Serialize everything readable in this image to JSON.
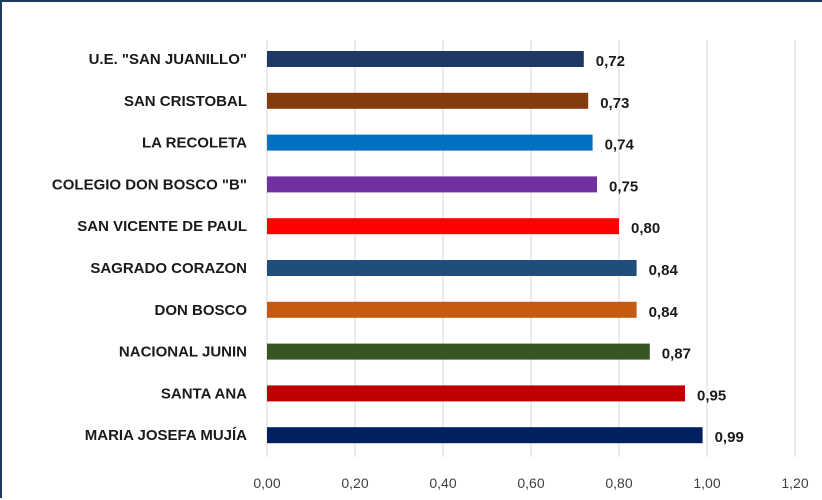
{
  "chart_data": {
    "type": "bar",
    "orientation": "horizontal",
    "categories": [
      "U.E. \"SAN JUANILLO\"",
      "SAN CRISTOBAL",
      "LA RECOLETA",
      "COLEGIO DON BOSCO \"B\"",
      "SAN VICENTE DE PAUL",
      "SAGRADO CORAZON",
      "DON BOSCO",
      "NACIONAL JUNIN",
      "SANTA ANA",
      "MARIA JOSEFA MUJÍA"
    ],
    "values": [
      0.72,
      0.73,
      0.74,
      0.75,
      0.8,
      0.84,
      0.84,
      0.87,
      0.95,
      0.99
    ],
    "value_labels": [
      "0,72",
      "0,73",
      "0,74",
      "0,75",
      "0,80",
      "0,84",
      "0,84",
      "0,87",
      "0,95",
      "0,99"
    ],
    "bar_colors": [
      "#203864",
      "#843c0c",
      "#0070c0",
      "#7030a0",
      "#ff0000",
      "#1f4e79",
      "#c55a11",
      "#375623",
      "#c00000",
      "#002060"
    ],
    "xlim": [
      0,
      1.2
    ],
    "x_ticks": [
      "0,00",
      "0,20",
      "0,40",
      "0,60",
      "0,80",
      "1,00",
      "1,20"
    ],
    "grid": "vertical",
    "legend": "none"
  }
}
